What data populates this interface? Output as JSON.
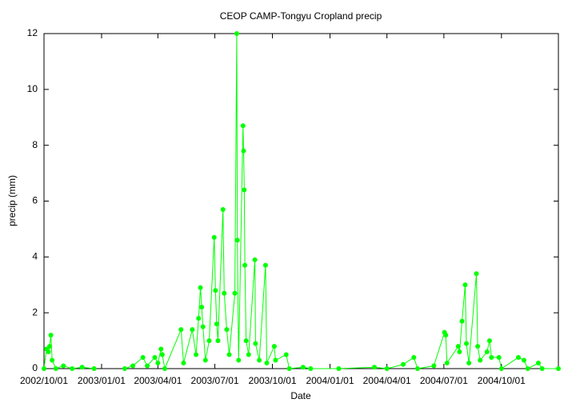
{
  "chart_data": {
    "type": "line",
    "title": "CEOP CAMP-Tongyu Cropland  precip",
    "x_label": "Date",
    "y_label": "precip (mm)",
    "xlim": [
      "2002-10-01",
      "2004-12-31"
    ],
    "ylim": [
      0,
      12
    ],
    "yticks": [
      0,
      2,
      4,
      6,
      8,
      10,
      12
    ],
    "xticks": [
      {
        "value": "2002-10-01",
        "label": "2002/10/01"
      },
      {
        "value": "2003-01-01",
        "label": "2003/01/01"
      },
      {
        "value": "2003-04-01",
        "label": "2003/04/01"
      },
      {
        "value": "2003-07-01",
        "label": "2003/07/01"
      },
      {
        "value": "2003-10-01",
        "label": "2003/10/01"
      },
      {
        "value": "2004-01-01",
        "label": "2004/01/01"
      },
      {
        "value": "2004-04-01",
        "label": "2004/04/01"
      },
      {
        "value": "2004-07-01",
        "label": "2004/07/01"
      },
      {
        "value": "2004-10-01",
        "label": "2004/10/01"
      }
    ],
    "grid": false,
    "series": [
      {
        "name": "precip",
        "color": "#00ff00",
        "x": [
          "2002-10-01",
          "2002-10-05",
          "2002-10-08",
          "2002-10-10",
          "2002-10-12",
          "2002-10-14",
          "2002-10-20",
          "2002-11-01",
          "2002-11-15",
          "2002-12-01",
          "2002-12-20",
          "2003-01-15",
          "2003-02-07",
          "2003-02-20",
          "2003-03-08",
          "2003-03-15",
          "2003-03-27",
          "2003-04-01",
          "2003-04-06",
          "2003-04-08",
          "2003-04-12",
          "2003-05-08",
          "2003-05-12",
          "2003-05-26",
          "2003-06-01",
          "2003-06-05",
          "2003-06-08",
          "2003-06-10",
          "2003-06-12",
          "2003-06-16",
          "2003-06-22",
          "2003-06-30",
          "2003-07-02",
          "2003-07-04",
          "2003-07-06",
          "2003-07-14",
          "2003-07-16",
          "2003-07-20",
          "2003-07-24",
          "2003-08-02",
          "2003-08-05",
          "2003-08-06",
          "2003-08-08",
          "2003-08-15",
          "2003-08-16",
          "2003-08-17",
          "2003-08-18",
          "2003-08-20",
          "2003-08-24",
          "2003-09-03",
          "2003-09-04",
          "2003-09-10",
          "2003-09-20",
          "2003-09-22",
          "2003-10-04",
          "2003-10-06",
          "2003-10-23",
          "2003-10-28",
          "2003-11-19",
          "2003-12-01",
          "2004-01-15",
          "2004-03-12",
          "2004-04-01",
          "2004-04-27",
          "2004-05-14",
          "2004-05-20",
          "2004-06-15",
          "2004-07-02",
          "2004-07-04",
          "2004-07-06",
          "2004-07-24",
          "2004-07-26",
          "2004-07-30",
          "2004-08-04",
          "2004-08-06",
          "2004-08-10",
          "2004-08-22",
          "2004-08-24",
          "2004-08-28",
          "2004-09-08",
          "2004-09-12",
          "2004-09-15",
          "2004-09-27",
          "2004-10-01",
          "2004-10-28",
          "2004-11-06",
          "2004-11-12",
          "2004-11-29",
          "2004-12-05",
          "2004-12-31"
        ],
        "values": [
          0,
          0.7,
          0.6,
          0.8,
          1.2,
          0.3,
          0,
          0.1,
          0,
          0.05,
          0,
          null,
          0,
          0.1,
          0.4,
          0.1,
          0.4,
          0.2,
          0.7,
          0.5,
          0,
          1.4,
          0.2,
          1.4,
          0.5,
          1.8,
          2.9,
          2.2,
          1.5,
          0.3,
          1.0,
          4.7,
          2.8,
          1.6,
          1.0,
          5.7,
          2.7,
          1.4,
          0.5,
          2.7,
          12,
          4.6,
          0.3,
          8.7,
          7.8,
          6.4,
          3.7,
          1.0,
          0.5,
          3.9,
          0.9,
          0.3,
          3.7,
          0.2,
          0.8,
          0.3,
          0.5,
          0,
          0.05,
          0,
          0,
          0.05,
          0,
          0.15,
          0.4,
          0,
          0.1,
          1.3,
          1.2,
          0.2,
          0.8,
          0.6,
          1.7,
          3.0,
          0.9,
          0.2,
          3.4,
          0.8,
          0.3,
          0.6,
          1.0,
          0.4,
          0.4,
          0,
          0.4,
          0.3,
          0,
          0.2,
          0,
          0
        ]
      }
    ]
  }
}
